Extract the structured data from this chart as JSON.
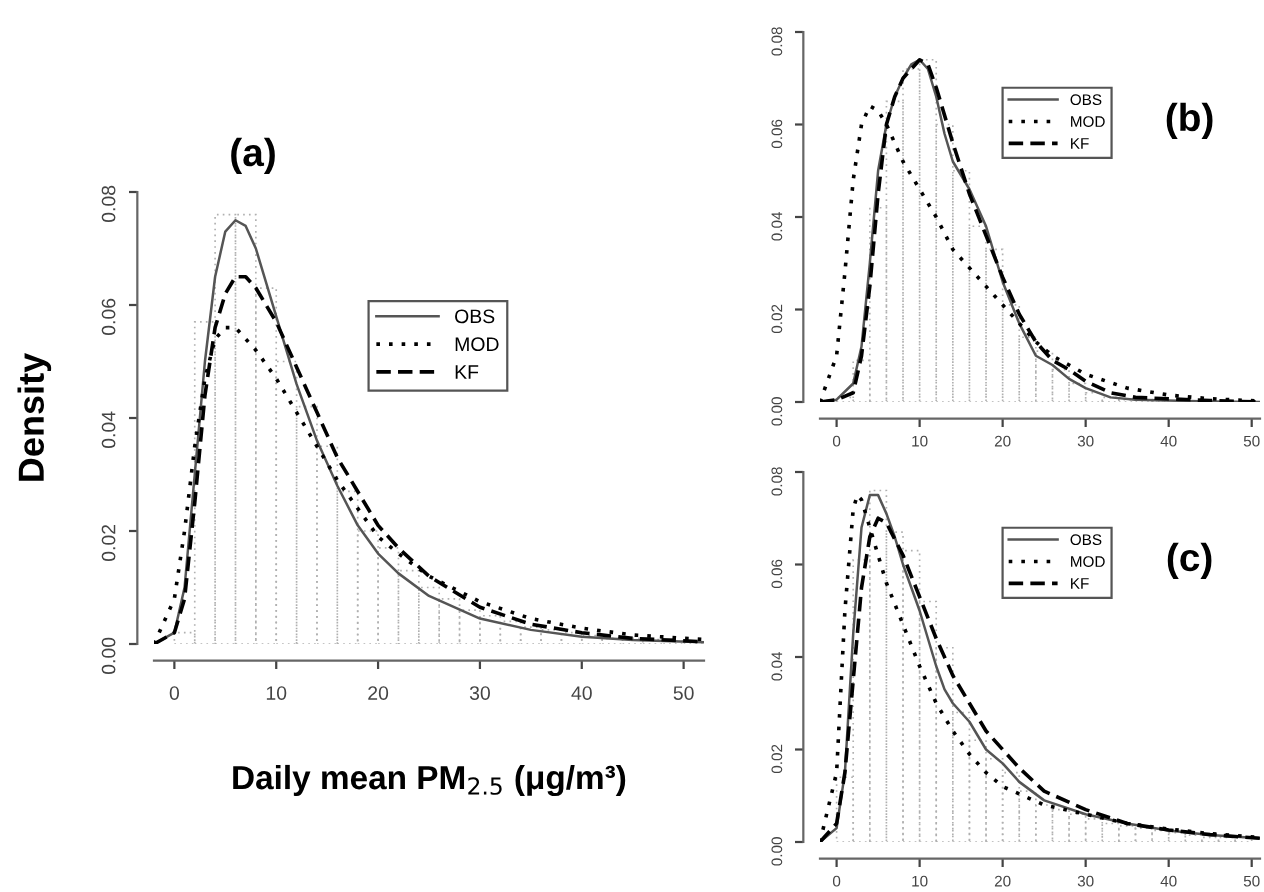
{
  "chart_data": [
    {
      "type": "line",
      "title": "(a)",
      "xlabel": "Daily mean PM$_{2.5}$ (μg/m³)",
      "ylabel": "Density",
      "legend": "top right",
      "grid": false,
      "xlim": [
        -2,
        52
      ],
      "xticks": [
        0,
        10,
        20,
        30,
        40,
        50
      ],
      "ylim": [
        0,
        0.08
      ],
      "yticks": [
        {
          "value": 0,
          "label": "0.00"
        },
        {
          "value": 0.02,
          "label": "0.02"
        },
        {
          "value": 0.04,
          "label": "0.04"
        },
        {
          "value": 0.06,
          "label": "0.06"
        },
        {
          "value": 0.08,
          "label": "0.08"
        }
      ],
      "series": [
        {
          "type": "histogram",
          "color": "#b0b0b0",
          "line_style": "dotted",
          "bins": [
            0,
            2,
            4,
            6,
            8,
            10,
            12,
            14,
            16,
            18,
            20,
            22,
            24,
            26,
            28,
            30,
            32,
            34,
            36,
            38,
            40,
            42,
            44,
            46,
            48,
            50,
            52
          ],
          "values": [
            0.002,
            0.057,
            0.076,
            0.076,
            0.063,
            0.05,
            0.042,
            0.035,
            0.027,
            0.02,
            0.017,
            0.013,
            0.01,
            0.008,
            0.006,
            0.005,
            0.004,
            0.003,
            0.0025,
            0.002,
            0.0015,
            0.001,
            0.001,
            0.0008,
            0.0005,
            0.0004
          ]
        },
        {
          "name": "OBS",
          "color": "#555555",
          "line_style": "solid",
          "x": [
            -2,
            0,
            1,
            2,
            3,
            4,
            5,
            6,
            7,
            8,
            9,
            10,
            12,
            14,
            16,
            18,
            20,
            22,
            25,
            30,
            35,
            40,
            45,
            52
          ],
          "values": [
            0,
            0.002,
            0.01,
            0.03,
            0.05,
            0.065,
            0.073,
            0.075,
            0.074,
            0.07,
            0.064,
            0.058,
            0.046,
            0.036,
            0.028,
            0.021,
            0.016,
            0.0125,
            0.0085,
            0.0045,
            0.0025,
            0.0013,
            0.0007,
            0.0003
          ]
        },
        {
          "name": "MOD",
          "color": "#000000",
          "line_style": "dotted",
          "x": [
            -2,
            0,
            1,
            2,
            3,
            4,
            5,
            6,
            7,
            8,
            10,
            12,
            14,
            16,
            18,
            20,
            22,
            25,
            30,
            35,
            40,
            45,
            52
          ],
          "values": [
            0,
            0.008,
            0.02,
            0.035,
            0.047,
            0.054,
            0.056,
            0.056,
            0.054,
            0.052,
            0.047,
            0.041,
            0.035,
            0.029,
            0.024,
            0.019,
            0.016,
            0.012,
            0.0075,
            0.0045,
            0.0028,
            0.0016,
            0.0008
          ]
        },
        {
          "name": "KF",
          "color": "#000000",
          "line_style": "dashed",
          "x": [
            -2,
            0,
            1,
            2,
            3,
            4,
            5,
            6,
            7,
            8,
            10,
            12,
            14,
            16,
            18,
            20,
            22,
            25,
            30,
            35,
            40,
            45,
            52
          ],
          "values": [
            0,
            0.002,
            0.008,
            0.025,
            0.044,
            0.056,
            0.062,
            0.065,
            0.065,
            0.063,
            0.057,
            0.049,
            0.041,
            0.033,
            0.027,
            0.021,
            0.017,
            0.012,
            0.0065,
            0.0035,
            0.002,
            0.001,
            0.0004
          ]
        }
      ]
    },
    {
      "type": "line",
      "title": "(b)",
      "legend": "top right",
      "grid": false,
      "xlim": [
        -2,
        51
      ],
      "xticks": [
        0,
        10,
        20,
        30,
        40,
        50
      ],
      "ylim": [
        0,
        0.08
      ],
      "yticks": [
        {
          "value": 0,
          "label": "0.00"
        },
        {
          "value": 0.02,
          "label": "0.02"
        },
        {
          "value": 0.04,
          "label": "0.04"
        },
        {
          "value": 0.06,
          "label": "0.06"
        },
        {
          "value": 0.08,
          "label": "0.08"
        }
      ],
      "series": [
        {
          "type": "histogram",
          "color": "#b0b0b0",
          "line_style": "dotted",
          "bins": [
            0,
            2,
            4,
            6,
            8,
            10,
            12,
            14,
            16,
            18,
            20,
            22,
            24,
            26,
            28,
            30,
            32,
            34,
            36,
            38,
            40,
            42,
            44,
            46,
            48,
            50
          ],
          "values": [
            0.001,
            0.009,
            0.042,
            0.065,
            0.072,
            0.074,
            0.06,
            0.05,
            0.038,
            0.033,
            0.021,
            0.014,
            0.011,
            0.007,
            0.004,
            0.002,
            0.001,
            0.0005,
            0.0005,
            0.0003,
            null,
            null,
            null,
            0,
            0
          ]
        },
        {
          "name": "OBS",
          "color": "#555555",
          "line_style": "solid",
          "x": [
            -2,
            0,
            2,
            3,
            4,
            5,
            6,
            7,
            8,
            9,
            10,
            11,
            12,
            13,
            14,
            16,
            18,
            20,
            22,
            24,
            26,
            28,
            30,
            33,
            36,
            45,
            51
          ],
          "values": [
            0,
            0.0005,
            0.004,
            0.012,
            0.03,
            0.05,
            0.06,
            0.066,
            0.07,
            0.073,
            0.074,
            0.072,
            0.066,
            0.058,
            0.052,
            0.046,
            0.038,
            0.026,
            0.017,
            0.01,
            0.008,
            0.005,
            0.003,
            0.001,
            0.0005,
            0.0001,
            0
          ]
        },
        {
          "name": "MOD",
          "color": "#000000",
          "line_style": "dotted",
          "x": [
            -2,
            0,
            1,
            2,
            3,
            4,
            5,
            6,
            7,
            8,
            10,
            12,
            14,
            16,
            18,
            20,
            22,
            24,
            26,
            28,
            30,
            35,
            40,
            45,
            51
          ],
          "values": [
            0,
            0.01,
            0.028,
            0.048,
            0.06,
            0.064,
            0.063,
            0.06,
            0.056,
            0.052,
            0.046,
            0.04,
            0.033,
            0.029,
            0.025,
            0.021,
            0.017,
            0.013,
            0.01,
            0.008,
            0.006,
            0.003,
            0.0015,
            0.0007,
            0.0002
          ]
        },
        {
          "name": "KF",
          "color": "#000000",
          "line_style": "dashed",
          "x": [
            -2,
            0,
            2,
            3,
            4,
            5,
            6,
            7,
            8,
            10,
            11,
            12,
            14,
            16,
            18,
            20,
            22,
            24,
            26,
            28,
            30,
            33,
            36,
            45,
            51
          ],
          "values": [
            0,
            0.0005,
            0.002,
            0.01,
            0.025,
            0.045,
            0.06,
            0.066,
            0.07,
            0.074,
            0.073,
            0.068,
            0.056,
            0.045,
            0.036,
            0.027,
            0.019,
            0.013,
            0.009,
            0.007,
            0.0045,
            0.002,
            0.001,
            0.0003,
            0
          ]
        }
      ]
    },
    {
      "type": "line",
      "title": "(c)",
      "legend": "top right",
      "grid": false,
      "xlim": [
        -2,
        51
      ],
      "xticks": [
        0,
        10,
        20,
        30,
        40,
        50
      ],
      "ylim": [
        0,
        0.08
      ],
      "yticks": [
        {
          "value": 0,
          "label": "0.00"
        },
        {
          "value": 0.02,
          "label": "0.02"
        },
        {
          "value": 0.04,
          "label": "0.04"
        },
        {
          "value": 0.06,
          "label": "0.06"
        },
        {
          "value": 0.08,
          "label": "0.08"
        }
      ],
      "series": [
        {
          "type": "histogram",
          "color": "#b0b0b0",
          "line_style": "dotted",
          "bins": [
            0,
            2,
            4,
            6,
            8,
            10,
            12,
            14,
            16,
            18,
            20,
            22,
            24,
            26,
            28,
            30,
            32,
            34,
            36,
            38,
            40,
            42,
            44,
            46,
            48,
            50
          ],
          "values": [
            0.014,
            0.061,
            0.076,
            0.067,
            0.063,
            0.052,
            0.042,
            0.028,
            0.022,
            0.018,
            0.015,
            0.011,
            0.008,
            0.007,
            0.006,
            0.005,
            0.004,
            0.0035,
            0.003,
            0.0025,
            0.002,
            0.0015,
            0.001,
            0.001,
            0.001
          ]
        },
        {
          "name": "OBS",
          "color": "#555555",
          "line_style": "solid",
          "x": [
            -2,
            0,
            1,
            2,
            3,
            4,
            5,
            6,
            7,
            8,
            10,
            12,
            13,
            14,
            16,
            18,
            20,
            22,
            25,
            30,
            35,
            40,
            45,
            51
          ],
          "values": [
            0,
            0.003,
            0.015,
            0.045,
            0.068,
            0.075,
            0.075,
            0.071,
            0.066,
            0.06,
            0.05,
            0.038,
            0.033,
            0.03,
            0.026,
            0.02,
            0.017,
            0.013,
            0.009,
            0.006,
            0.004,
            0.0025,
            0.0015,
            0.0008
          ]
        },
        {
          "name": "MOD",
          "color": "#000000",
          "line_style": "dotted",
          "x": [
            -2,
            0,
            1,
            2,
            2.5,
            3,
            4,
            5,
            6,
            8,
            10,
            12,
            14,
            16,
            18,
            20,
            25,
            30,
            35,
            40,
            45,
            51
          ],
          "values": [
            0,
            0.015,
            0.05,
            0.072,
            0.075,
            0.074,
            0.068,
            0.062,
            0.056,
            0.047,
            0.038,
            0.03,
            0.024,
            0.019,
            0.015,
            0.012,
            0.008,
            0.006,
            0.004,
            0.0028,
            0.0018,
            0.001
          ]
        },
        {
          "name": "KF",
          "color": "#000000",
          "line_style": "dashed",
          "x": [
            -2,
            0,
            1,
            2,
            3,
            4,
            5,
            6,
            8,
            10,
            12,
            14,
            16,
            18,
            20,
            22,
            25,
            30,
            35,
            40,
            45,
            51
          ],
          "values": [
            0,
            0.004,
            0.015,
            0.035,
            0.055,
            0.066,
            0.07,
            0.069,
            0.062,
            0.053,
            0.044,
            0.036,
            0.03,
            0.024,
            0.02,
            0.016,
            0.011,
            0.007,
            0.004,
            0.0026,
            0.0016,
            0.0008
          ]
        }
      ]
    }
  ]
}
